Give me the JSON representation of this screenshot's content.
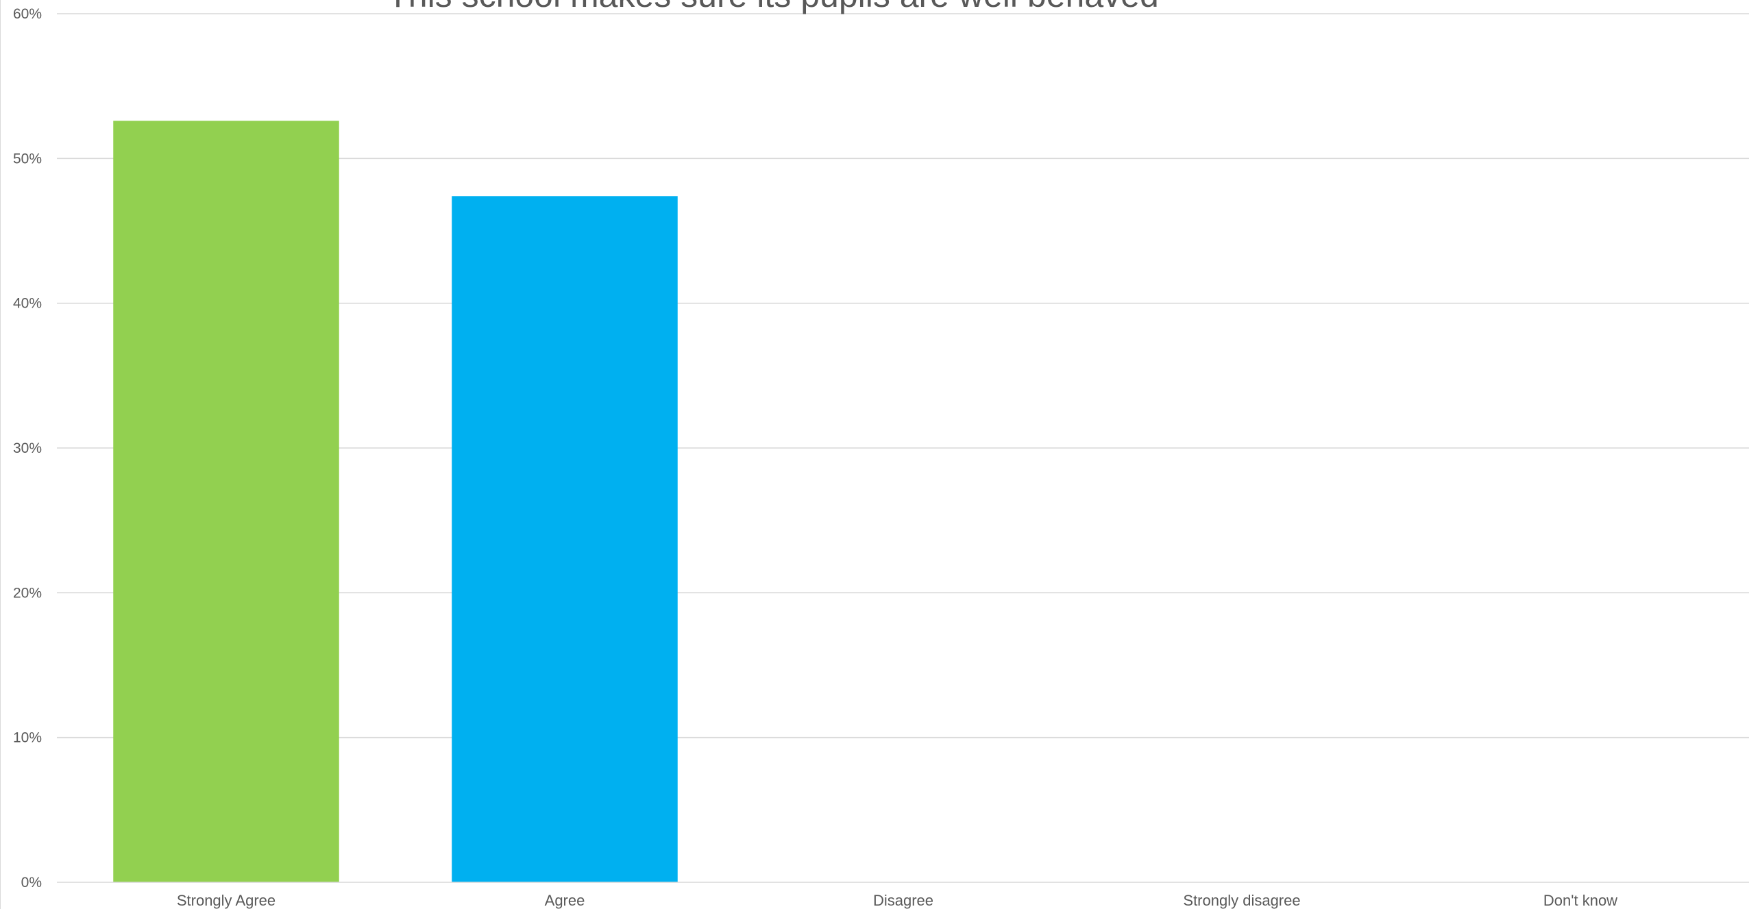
{
  "chart_data": {
    "type": "bar",
    "title": "This school makes sure its pupils are well behaved",
    "xlabel": "",
    "ylabel": "",
    "categories": [
      "Strongly Agree",
      "Agree",
      "Disagree",
      "Strongly disagree",
      "Don't know"
    ],
    "values": [
      52.6,
      47.4,
      0,
      0,
      0
    ],
    "value_unit": "%",
    "colors": [
      "#92d050",
      "#00b0f0",
      "#92d050",
      "#92d050",
      "#92d050"
    ],
    "ylim": [
      0,
      60
    ],
    "yticks": [
      0,
      10,
      20,
      30,
      40,
      50,
      60
    ],
    "ytick_labels": [
      "0%",
      "10%",
      "20%",
      "30%",
      "40%",
      "50%",
      "60%"
    ],
    "grid": true,
    "legend": "none"
  }
}
